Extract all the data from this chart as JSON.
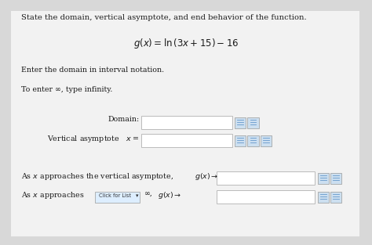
{
  "bg_color": "#d8d8d8",
  "panel_color": "#f2f2f2",
  "title_text": "State the domain, vertical asymptote, and end behavior of the function.",
  "equation": "$g(x) = \\mathrm{ln}\\,(3x + 15) - 16$",
  "instruction1": "Enter the domain in interval notation.",
  "instruction2": "To enter ∞, type infinity.",
  "domain_label": "Domain:",
  "vert_label": "Vertical asymptote   $x$ =",
  "end1a": "As $x$ approaches the vertical asymptote,",
  "end1b": "$g(x) \\rightarrow$",
  "end2a": "As $x$ approaches",
  "click_label": "Click for List",
  "end2b": "∞,",
  "end2c": "$g(x) \\rightarrow$",
  "font_size_title": 7.2,
  "font_size_eq": 8.5,
  "font_size_body": 6.8,
  "font_size_small": 5.5,
  "box_color": "#ffffff",
  "box_edge_color": "#bbbbbb",
  "text_color": "#1a1a1a"
}
